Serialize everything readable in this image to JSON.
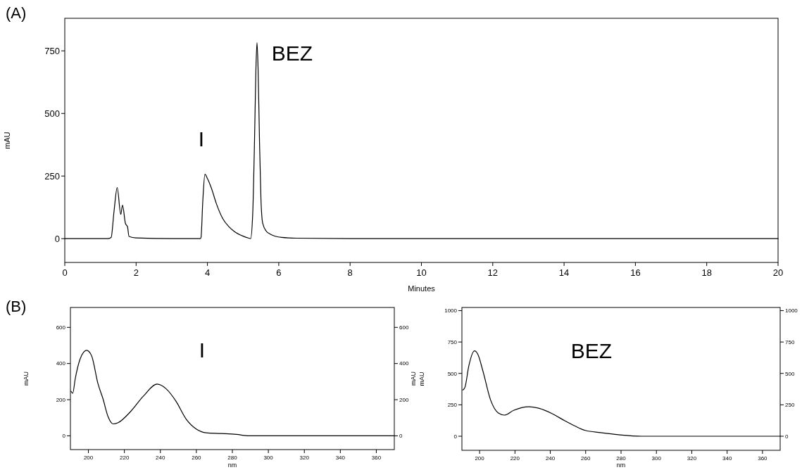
{
  "chart_data": [
    {
      "type": "line",
      "title": "(A)",
      "xlabel": "Minutes",
      "ylabel": "mAU",
      "xlim": [
        0,
        20
      ],
      "ylim": [
        -95,
        880
      ],
      "xticks": [
        0,
        2,
        4,
        6,
        8,
        10,
        12,
        14,
        16,
        18,
        20
      ],
      "yticks": [
        0,
        250,
        500,
        750
      ],
      "grid": false,
      "line_style": "solid",
      "annotations": [
        "I",
        "BEZ"
      ],
      "series": [
        {
          "color": "#000000",
          "x": [
            0,
            1.2,
            1.3,
            1.38,
            1.47,
            1.57,
            1.62,
            1.7,
            1.76,
            1.8,
            2.0,
            3.0,
            3.8,
            3.82,
            3.87,
            3.93,
            4.0,
            4.11,
            4.25,
            4.43,
            4.6,
            4.76,
            5.0,
            5.16,
            5.21,
            5.27,
            5.32,
            5.36,
            5.39,
            5.42,
            5.46,
            5.5,
            5.55,
            5.65,
            5.75,
            6.08,
            6.5,
            8,
            20
          ],
          "values": [
            0,
            0,
            5,
            108,
            204,
            97,
            134,
            61,
            47,
            9,
            3,
            0,
            0,
            5,
            150,
            257,
            240,
            202,
            140,
            80,
            48,
            28,
            10,
            2,
            0,
            100,
            390,
            680,
            783,
            680,
            390,
            160,
            61,
            30,
            19,
            5,
            2,
            0,
            0
          ]
        }
      ]
    },
    {
      "type": "line",
      "title": "(B)",
      "xlabel": "nm",
      "ylabel": "mAU",
      "y2label": "mAU",
      "xlim": [
        190,
        370
      ],
      "ylim": [
        -76,
        710
      ],
      "xticks": [
        200,
        220,
        240,
        260,
        280,
        300,
        320,
        340,
        360
      ],
      "yticks": [
        0,
        200,
        400,
        600
      ],
      "y2lim": [
        -76,
        710
      ],
      "y2ticks": [
        0,
        200,
        400,
        600
      ],
      "grid": false,
      "line_style": "solid",
      "annotations": [
        "I"
      ],
      "series": [
        {
          "color": "#000000",
          "x": [
            190.3,
            191.3,
            192.7,
            195.5,
            199,
            201.8,
            205.3,
            208.1,
            210.9,
            213.7,
            216.5,
            223.5,
            230.5,
            238.2,
            243.1,
            248.7,
            254.3,
            259.9,
            265.5,
            273.9,
            282.3,
            289.3,
            370
          ],
          "values": [
            247,
            236,
            317,
            428,
            473,
            442,
            289,
            205,
            107,
            66,
            73,
            135,
            219,
            286,
            261,
            191,
            93,
            38,
            17,
            13,
            8,
            0,
            0
          ]
        }
      ]
    },
    {
      "type": "line",
      "xlabel": "nm",
      "ylabel": "mAU",
      "xlim": [
        190,
        370
      ],
      "ylim": [
        -112,
        1025
      ],
      "xticks": [
        200,
        220,
        240,
        260,
        280,
        300,
        320,
        340,
        360
      ],
      "yticks": [
        0,
        250,
        500,
        750,
        1000
      ],
      "y2lim": [
        -112,
        1025
      ],
      "y2ticks": [
        0,
        250,
        500,
        750,
        1000
      ],
      "grid": false,
      "line_style": "solid",
      "annotations": [
        "BEZ"
      ],
      "series": [
        {
          "color": "#000000",
          "x": [
            190.6,
            191.8,
            193.9,
            197.1,
            199,
            201.9,
            206.2,
            210.6,
            214.2,
            219.2,
            227.9,
            233.7,
            240.9,
            248.2,
            254,
            259.8,
            268.4,
            278.6,
            291.6,
            370
          ],
          "values": [
            368,
            393,
            559,
            680,
            653,
            518,
            289,
            185,
            168,
            206,
            235,
            222,
            181,
            123,
            81,
            46,
            29,
            12,
            0,
            0
          ]
        }
      ]
    }
  ]
}
